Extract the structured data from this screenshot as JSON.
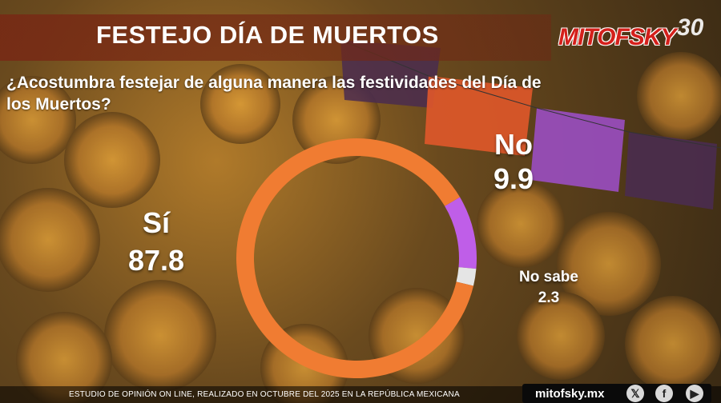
{
  "header": {
    "title": "FESTEJO DÍA DE MUERTOS",
    "brand": "MITOFSKY",
    "anniversary": "30"
  },
  "question": "¿Acostumbra festejar de alguna manera las festividades del Día de los Muertos?",
  "chart_data": {
    "type": "pie",
    "categories": [
      "Sí",
      "No",
      "No sabe"
    ],
    "values": [
      87.8,
      9.9,
      2.3
    ],
    "colors": [
      "#f07c32",
      "#bf5ee8",
      "#e5e5e5"
    ]
  },
  "labels": {
    "si": {
      "name": "Sí",
      "value": "87.8"
    },
    "no": {
      "name": "No",
      "value": "9.9"
    },
    "no_sabe": {
      "name": "No sabe",
      "value": "2.3"
    }
  },
  "footer": {
    "note": "ESTUDIO DE OPINIÓN ON LINE, REALIZADO EN OCTUBRE DEL 2025 EN LA REPÚBLICA MEXICANA",
    "website": "mitofsky.mx",
    "social": [
      "x-icon",
      "facebook-icon",
      "youtube-icon"
    ]
  }
}
